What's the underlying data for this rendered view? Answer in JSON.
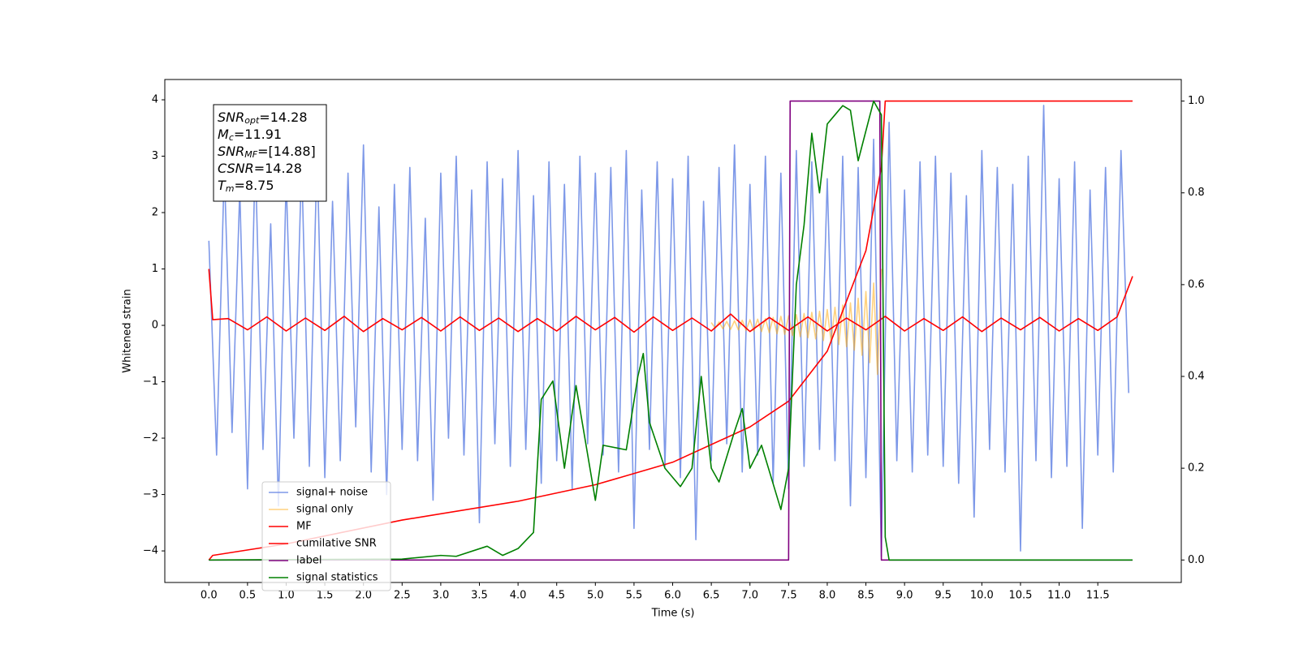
{
  "chart_data": {
    "type": "line",
    "xlabel": "Time (s)",
    "ylabel": "Whitened strain",
    "xlim": [
      -0.57,
      12.58
    ],
    "ylim": [
      -4.56,
      4.36
    ],
    "y2lim": [
      -0.049,
      1.047
    ],
    "xticks": [
      {
        "value": 0,
        "label": "0.0"
      },
      0.5,
      {
        "value": 1,
        "label": "1.0"
      },
      1.5,
      {
        "value": 2,
        "label": "2.0"
      },
      2.5,
      {
        "value": 3,
        "label": "3.0"
      },
      3.5,
      {
        "value": 4,
        "label": "4.0"
      },
      4.5,
      {
        "value": 5,
        "label": "5.0"
      },
      5.5,
      {
        "value": 6,
        "label": "6.0"
      },
      6.5,
      {
        "value": 7,
        "label": "7.0"
      },
      7.5,
      {
        "value": 8,
        "label": "8.0"
      },
      8.5,
      {
        "value": 9,
        "label": "9.0"
      },
      9.5,
      {
        "value": 10,
        "label": "10.0"
      },
      10.5,
      {
        "value": 11,
        "label": "11.0"
      },
      11.5
    ],
    "yticks": [
      {
        "value": -4,
        "label": "−4"
      },
      {
        "value": -3,
        "label": "−3"
      },
      {
        "value": -2,
        "label": "−2"
      },
      {
        "value": -1,
        "label": "−1"
      },
      0,
      1,
      2,
      3,
      4
    ],
    "y2ticks": [
      {
        "value": 0,
        "label": "0.0"
      },
      0.2,
      0.4,
      0.6,
      0.8,
      {
        "value": 1,
        "label": "1.0"
      }
    ],
    "legend": "lower left",
    "annotations": [
      {
        "symbol": "SNR",
        "subscript": "opt",
        "text": "=14.28"
      },
      {
        "symbol": "M",
        "subscript": "c",
        "text": "=11.91"
      },
      {
        "symbol": "SNR",
        "subscript": "MF",
        "text": "=[14.88]"
      },
      {
        "symbol": "CSNR",
        "text": "=14.28"
      },
      {
        "symbol": "T",
        "subscript": "m",
        "text": "=8.75"
      }
    ],
    "series": [
      {
        "name": "signal+ noise",
        "color": "#6f8de6",
        "opacity": 0.9,
        "x": [
          0,
          0.1,
          0.2,
          0.3,
          0.4,
          0.5,
          0.6,
          0.7,
          0.8,
          0.9,
          1,
          1.1,
          1.2,
          1.3,
          1.4,
          1.5,
          1.6,
          1.7,
          1.8,
          1.9,
          2,
          2.1,
          2.2,
          2.3,
          2.4,
          2.5,
          2.6,
          2.7,
          2.8,
          2.9,
          3,
          3.1,
          3.2,
          3.3,
          3.4,
          3.5,
          3.6,
          3.7,
          3.8,
          3.9,
          4,
          4.1,
          4.2,
          4.3,
          4.4,
          4.5,
          4.6,
          4.7,
          4.8,
          4.9,
          5,
          5.1,
          5.2,
          5.3,
          5.4,
          5.5,
          5.6,
          5.7,
          5.8,
          5.9,
          6,
          6.1,
          6.2,
          6.3,
          6.4,
          6.5,
          6.6,
          6.7,
          6.8,
          6.9,
          7,
          7.1,
          7.2,
          7.3,
          7.4,
          7.5,
          7.6,
          7.7,
          7.8,
          7.9,
          8,
          8.1,
          8.2,
          8.3,
          8.4,
          8.5,
          8.6,
          8.7,
          8.8,
          8.9,
          9,
          9.1,
          9.2,
          9.3,
          9.4,
          9.5,
          9.6,
          9.7,
          9.8,
          9.9,
          10,
          10.1,
          10.2,
          10.3,
          10.4,
          10.5,
          10.6,
          10.7,
          10.8,
          10.9,
          11,
          11.1,
          11.2,
          11.3,
          11.4,
          11.5,
          11.6,
          11.7,
          11.8,
          11.9
        ],
        "values": [
          1.5,
          -2.3,
          2.8,
          -1.9,
          2.4,
          -2.9,
          3.0,
          -2.2,
          1.8,
          -3.2,
          2.6,
          -2.0,
          2.9,
          -2.5,
          3.1,
          -2.7,
          2.2,
          -2.4,
          2.7,
          -1.8,
          3.2,
          -2.6,
          2.1,
          -3.0,
          2.5,
          -2.2,
          2.8,
          -2.4,
          1.9,
          -3.1,
          2.7,
          -2.0,
          3.0,
          -2.3,
          2.4,
          -3.5,
          2.9,
          -2.1,
          2.6,
          -2.5,
          3.1,
          -2.2,
          2.3,
          -2.8,
          2.9,
          -2.4,
          2.5,
          -2.9,
          3.0,
          -2.1,
          2.7,
          -2.3,
          2.8,
          -2.6,
          3.1,
          -3.6,
          2.4,
          -2.2,
          2.9,
          -2.5,
          2.6,
          -2.7,
          3.0,
          -3.8,
          2.2,
          -2.4,
          2.8,
          -2.1,
          3.2,
          -2.6,
          2.5,
          -2.3,
          3.0,
          -2.8,
          2.7,
          -2.9,
          3.1,
          -2.5,
          2.9,
          -2.2,
          2.6,
          -2.4,
          3.0,
          -3.2,
          2.8,
          -2.7,
          3.3,
          -4.1,
          3.6,
          -2.4,
          2.4,
          -2.6,
          2.9,
          -2.3,
          3.0,
          -2.5,
          2.7,
          -2.8,
          2.3,
          -3.4,
          3.1,
          -2.2,
          2.8,
          -2.6,
          2.5,
          -4.0,
          3.0,
          -2.4,
          3.9,
          -2.7,
          2.6,
          -2.5,
          2.9,
          -3.6,
          2.4,
          -2.3,
          2.8,
          -2.6,
          3.1,
          -1.2
        ]
      },
      {
        "name": "signal only",
        "color": "#ffa500",
        "opacity": 0.5,
        "x": [
          6.5,
          6.55,
          6.6,
          6.65,
          6.7,
          6.75,
          6.8,
          6.85,
          6.9,
          6.95,
          7,
          7.05,
          7.1,
          7.15,
          7.2,
          7.25,
          7.3,
          7.35,
          7.4,
          7.45,
          7.5,
          7.55,
          7.6,
          7.65,
          7.7,
          7.75,
          7.8,
          7.85,
          7.9,
          7.95,
          8,
          8.05,
          8.1,
          8.15,
          8.2,
          8.25,
          8.3,
          8.35,
          8.4,
          8.45,
          8.5,
          8.55,
          8.6,
          8.65,
          8.7
        ],
        "values": [
          0.05,
          -0.05,
          0.06,
          -0.06,
          0.07,
          -0.07,
          0.08,
          -0.08,
          0.09,
          -0.09,
          0.1,
          -0.1,
          0.11,
          -0.11,
          0.12,
          -0.13,
          0.14,
          -0.15,
          0.16,
          -0.16,
          0.17,
          -0.18,
          0.19,
          -0.2,
          0.21,
          -0.22,
          0.23,
          -0.24,
          0.25,
          -0.27,
          0.28,
          -0.3,
          0.32,
          -0.34,
          0.36,
          -0.38,
          0.4,
          -0.44,
          0.48,
          -0.53,
          0.6,
          -0.66,
          0.75,
          -0.87,
          1.0
        ]
      },
      {
        "name": "MF",
        "color": "#ff0000",
        "opacity": 1,
        "x": [
          0,
          0.05,
          0.25,
          0.5,
          0.75,
          1,
          1.25,
          1.5,
          1.75,
          2,
          2.25,
          2.5,
          2.75,
          3,
          3.25,
          3.5,
          3.75,
          4,
          4.25,
          4.5,
          4.75,
          5,
          5.25,
          5.5,
          5.75,
          6,
          6.25,
          6.5,
          6.75,
          7,
          7.25,
          7.5,
          7.75,
          8,
          8.25,
          8.5,
          8.75,
          9,
          9.25,
          9.5,
          9.75,
          10,
          10.25,
          10.5,
          10.75,
          11,
          11.25,
          11.5,
          11.75,
          11.95
        ],
        "values": [
          1.0,
          0.1,
          0.12,
          -0.08,
          0.15,
          -0.1,
          0.13,
          -0.09,
          0.16,
          -0.11,
          0.12,
          -0.08,
          0.14,
          -0.1,
          0.15,
          -0.09,
          0.13,
          -0.11,
          0.12,
          -0.1,
          0.16,
          -0.08,
          0.14,
          -0.12,
          0.15,
          -0.09,
          0.13,
          -0.1,
          0.2,
          -0.11,
          0.14,
          -0.09,
          0.15,
          -0.1,
          0.13,
          -0.08,
          0.16,
          -0.1,
          0.12,
          -0.09,
          0.15,
          -0.11,
          0.13,
          -0.08,
          0.14,
          -0.1,
          0.12,
          -0.09,
          0.15,
          0.87
        ]
      },
      {
        "name": "cumilative SNR",
        "color": "#ff0000",
        "opacity": 1,
        "axis": "y2",
        "x": [
          0,
          0.05,
          1,
          2.5,
          4,
          5,
          6,
          7,
          7.5,
          8,
          8.5,
          8.7,
          8.75,
          11.95
        ],
        "values": [
          0.0,
          0.01,
          0.035,
          0.087,
          0.128,
          0.164,
          0.213,
          0.29,
          0.346,
          0.455,
          0.674,
          0.856,
          1.0,
          1.0
        ]
      },
      {
        "name": "label",
        "color": "#800080",
        "opacity": 1,
        "axis": "y2",
        "x": [
          0,
          7.5,
          7.52,
          8.68,
          8.7,
          11.95
        ],
        "values": [
          0,
          0,
          1,
          1,
          0,
          0
        ]
      },
      {
        "name": "signal statistics",
        "color": "#008000",
        "opacity": 1,
        "axis": "y2",
        "x": [
          0,
          2.5,
          3.0,
          3.2,
          3.6,
          3.8,
          4.0,
          4.2,
          4.3,
          4.45,
          4.6,
          4.75,
          5.0,
          5.1,
          5.4,
          5.55,
          5.62,
          5.7,
          5.9,
          6.1,
          6.25,
          6.37,
          6.5,
          6.6,
          6.8,
          6.9,
          7.0,
          7.15,
          7.4,
          7.5,
          7.6,
          7.7,
          7.8,
          7.9,
          8.0,
          8.1,
          8.2,
          8.3,
          8.4,
          8.6,
          8.7,
          8.75,
          8.8,
          11.95
        ],
        "values": [
          0,
          0.002,
          0.01,
          0.008,
          0.03,
          0.01,
          0.025,
          0.06,
          0.35,
          0.39,
          0.2,
          0.38,
          0.13,
          0.25,
          0.24,
          0.4,
          0.45,
          0.3,
          0.2,
          0.16,
          0.2,
          0.4,
          0.2,
          0.17,
          0.28,
          0.33,
          0.2,
          0.25,
          0.11,
          0.2,
          0.6,
          0.73,
          0.93,
          0.8,
          0.95,
          0.97,
          0.99,
          0.98,
          0.87,
          1.0,
          0.97,
          0.05,
          0,
          0
        ]
      }
    ]
  }
}
